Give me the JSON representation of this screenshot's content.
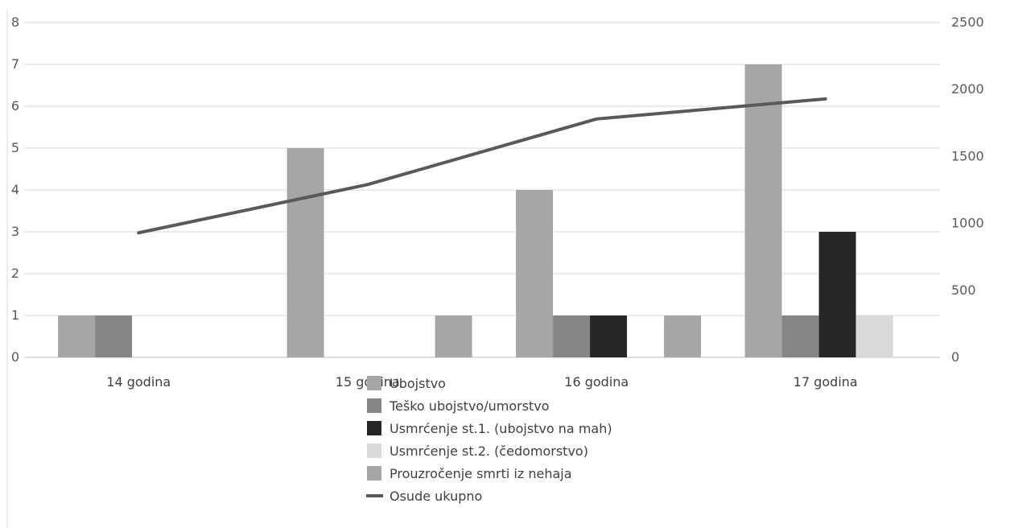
{
  "chart_data": {
    "type": "bar",
    "categories": [
      "14 godina",
      "15 godina",
      "16 godina",
      "17 godina"
    ],
    "series": [
      {
        "name": "Ubojstvo",
        "type": "bar",
        "axis": "left",
        "color": "#a6a6a6",
        "values": [
          1,
          5,
          4,
          7
        ]
      },
      {
        "name": "Teško ubojstvo/umorstvo",
        "type": "bar",
        "axis": "left",
        "color": "#868686",
        "values": [
          1,
          0,
          1,
          1
        ]
      },
      {
        "name": "Usmrćenje st.1. (ubojstvo na mah)",
        "type": "bar",
        "axis": "left",
        "color": "#262626",
        "values": [
          0,
          0,
          1,
          3
        ]
      },
      {
        "name": "Usmrćenje st.2. (čedomorstvo)",
        "type": "bar",
        "axis": "left",
        "color": "#d9d9d9",
        "values": [
          0,
          0,
          0,
          1
        ]
      },
      {
        "name": "Prouzročenje smrti iz nehaja",
        "type": "bar",
        "axis": "left",
        "color": "#a6a6a6",
        "values": [
          0,
          1,
          1,
          0
        ]
      },
      {
        "name": "Osude ukupno",
        "type": "line",
        "axis": "right",
        "color": "#595959",
        "values": [
          930,
          1290,
          1780,
          1930
        ]
      }
    ],
    "y_left": {
      "min": 0,
      "max": 8,
      "ticks": [
        "0",
        "1",
        "2",
        "3",
        "4",
        "5",
        "6",
        "7",
        "8"
      ]
    },
    "y_right": {
      "min": 0,
      "max": 2500,
      "ticks": [
        "0",
        "500",
        "1000",
        "1500",
        "2000",
        "2500"
      ]
    },
    "grid": true,
    "legend_position": "bottom-center",
    "title": "",
    "xlabel": "",
    "ylabel": ""
  }
}
